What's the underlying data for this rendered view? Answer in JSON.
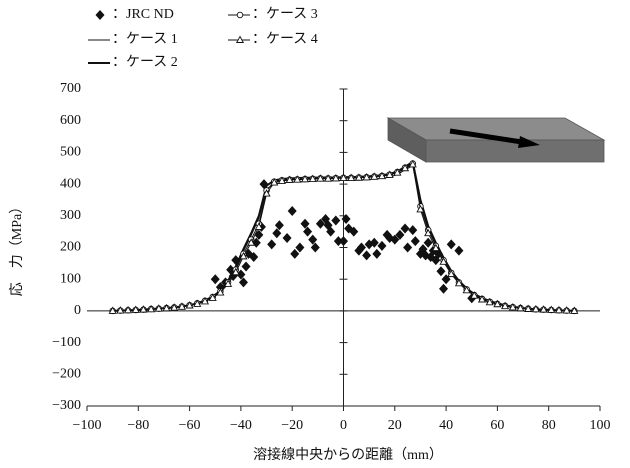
{
  "chart_data": {
    "type": "line",
    "x_label": "溶接線中央からの距離（mm）",
    "y_label": "応　力（MPa）",
    "xlim": [
      -100,
      100
    ],
    "xticks": [
      {
        "value": -100,
        "label": "−100"
      },
      {
        "value": -80,
        "label": "−80"
      },
      {
        "value": -60,
        "label": "−60"
      },
      {
        "value": -40,
        "label": "−40"
      },
      {
        "value": -20,
        "label": "−20"
      },
      0,
      20,
      40,
      60,
      80,
      100
    ],
    "ylim": [
      -300,
      700
    ],
    "yticks": [
      {
        "value": -300,
        "label": "−300"
      },
      {
        "value": -200,
        "label": "−200"
      },
      {
        "value": -100,
        "label": "−100"
      },
      0,
      100,
      200,
      300,
      400,
      500,
      600,
      700
    ],
    "x": [
      -90,
      -87,
      -84,
      -81,
      -78,
      -75,
      -72,
      -69,
      -66,
      -63,
      -60,
      -57,
      -54,
      -51,
      -48,
      -45,
      -42,
      -39,
      -36,
      -33,
      -30,
      -27,
      -24,
      -21,
      -18,
      -15,
      -12,
      -9,
      -6,
      -3,
      0,
      3,
      6,
      9,
      12,
      15,
      18,
      21,
      24,
      27,
      30,
      33,
      36,
      39,
      42,
      45,
      48,
      51,
      54,
      57,
      60,
      63,
      66,
      69,
      72,
      75,
      78,
      81,
      84,
      87,
      90
    ],
    "series": [
      {
        "name": "：JRC ND",
        "color": "#111111",
        "marker": "diamond",
        "line_width": 0,
        "x": [
          -50,
          -48,
          -46,
          -44,
          -43,
          -42,
          -40,
          -39,
          -38,
          -37,
          -35,
          -34,
          -33,
          -32,
          -31,
          -28,
          -26,
          -25,
          -22,
          -20,
          -19,
          -17,
          -15,
          -14,
          -12,
          -11,
          -9,
          -7,
          -6,
          -5,
          -3,
          -2,
          0,
          1,
          2,
          4,
          6,
          7,
          9,
          10,
          12,
          13,
          15,
          17,
          18,
          20,
          22,
          24,
          25,
          27,
          28,
          30,
          31,
          32,
          33,
          34,
          35,
          36,
          37,
          38,
          39,
          40,
          42,
          45,
          50
        ],
        "values": [
          100,
          75,
          90,
          130,
          110,
          160,
          115,
          90,
          140,
          180,
          170,
          215,
          240,
          265,
          400,
          210,
          245,
          270,
          230,
          315,
          180,
          200,
          275,
          250,
          225,
          200,
          275,
          290,
          270,
          250,
          285,
          220,
          220,
          290,
          260,
          250,
          190,
          200,
          175,
          210,
          215,
          180,
          205,
          240,
          230,
          225,
          240,
          260,
          200,
          255,
          220,
          180,
          195,
          175,
          215,
          170,
          190,
          160,
          180,
          125,
          70,
          100,
          210,
          190,
          40
        ]
      },
      {
        "name": "：ケース 1",
        "color": "#111111",
        "marker": "none",
        "line_width": 1,
        "values": [
          0,
          1,
          2,
          3,
          4,
          6,
          7,
          9,
          11,
          14,
          18,
          24,
          32,
          44,
          62,
          92,
          135,
          188,
          238,
          292,
          385,
          400,
          404,
          406,
          407,
          408,
          409,
          410,
          410,
          411,
          412,
          412,
          413,
          414,
          416,
          418,
          422,
          430,
          445,
          458,
          340,
          262,
          210,
          165,
          124,
          93,
          70,
          52,
          40,
          30,
          23,
          17,
          13,
          10,
          7,
          5,
          4,
          3,
          2,
          1,
          0
        ]
      },
      {
        "name": "：ケース 2",
        "color": "#111111",
        "marker": "none",
        "line_width": 2,
        "values": [
          0,
          1,
          2,
          3,
          4,
          6,
          7,
          9,
          11,
          14,
          18,
          24,
          33,
          45,
          64,
          95,
          140,
          195,
          245,
          300,
          395,
          412,
          416,
          418,
          419,
          420,
          420,
          421,
          421,
          421,
          422,
          422,
          423,
          424,
          426,
          428,
          432,
          440,
          455,
          470,
          350,
          268,
          215,
          168,
          126,
          95,
          71,
          53,
          41,
          31,
          24,
          18,
          13,
          10,
          7,
          5,
          4,
          3,
          2,
          1,
          0
        ]
      },
      {
        "name": "：ケース 3",
        "color": "#111111",
        "marker": "circle",
        "line_width": 1,
        "values": [
          0,
          1,
          2,
          3,
          4,
          6,
          7,
          9,
          11,
          14,
          18,
          24,
          32,
          44,
          62,
          90,
          130,
          180,
          225,
          275,
          380,
          408,
          412,
          414,
          415,
          416,
          417,
          418,
          418,
          419,
          420,
          420,
          421,
          422,
          424,
          426,
          430,
          438,
          452,
          465,
          330,
          255,
          205,
          160,
          120,
          90,
          68,
          50,
          38,
          29,
          22,
          16,
          12,
          9,
          7,
          5,
          4,
          3,
          2,
          1,
          0
        ]
      },
      {
        "name": "：ケース 4",
        "color": "#111111",
        "marker": "triangle",
        "line_width": 1,
        "values": [
          0,
          1,
          2,
          3,
          4,
          5,
          7,
          8,
          10,
          13,
          17,
          22,
          30,
          41,
          58,
          85,
          122,
          172,
          215,
          265,
          370,
          405,
          410,
          413,
          414,
          415,
          416,
          417,
          417,
          418,
          419,
          419,
          420,
          421,
          423,
          425,
          429,
          436,
          450,
          462,
          320,
          245,
          198,
          155,
          116,
          87,
          65,
          48,
          36,
          27,
          21,
          15,
          11,
          8,
          6,
          5,
          4,
          3,
          2,
          1,
          0
        ]
      }
    ]
  }
}
